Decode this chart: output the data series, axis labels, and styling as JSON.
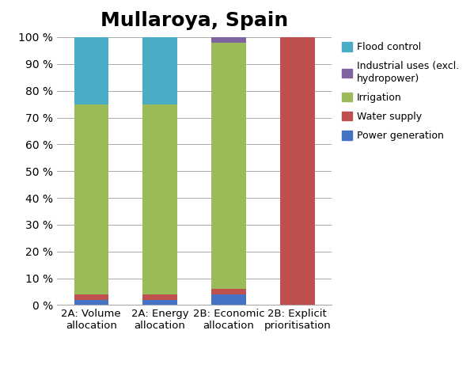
{
  "title": "Mullaroya, Spain",
  "categories": [
    "2A: Volume\nallocation",
    "2A: Energy\nallocation",
    "2B: Economic\nallocation",
    "2B: Explicit\nprioritisation"
  ],
  "series": [
    {
      "label": "Power generation",
      "color": "#4472C4",
      "values": [
        2,
        2,
        4,
        0
      ]
    },
    {
      "label": "Water supply",
      "color": "#C0504D",
      "values": [
        2,
        2,
        2,
        100
      ]
    },
    {
      "label": "Irrigation",
      "color": "#9BBB59",
      "values": [
        71,
        71,
        92,
        0
      ]
    },
    {
      "label": "Industrial uses (excl.\nhydropower)",
      "color": "#8064A2",
      "values": [
        0,
        0,
        2,
        0
      ]
    },
    {
      "label": "Flood control",
      "color": "#4BACC6",
      "values": [
        25,
        25,
        0,
        0
      ]
    }
  ],
  "ylim": [
    0,
    100
  ],
  "yticks": [
    0,
    10,
    20,
    30,
    40,
    50,
    60,
    70,
    80,
    90,
    100
  ],
  "ytick_labels": [
    "0 %",
    "10 %",
    "20 %",
    "30 %",
    "40 %",
    "50 %",
    "60 %",
    "70 %",
    "80 %",
    "90 %",
    "100 %"
  ],
  "background_color": "#FFFFFF",
  "grid_color": "#AAAAAA",
  "title_fontsize": 18,
  "legend_order": [
    4,
    3,
    2,
    1,
    0
  ],
  "bar_width": 0.5
}
